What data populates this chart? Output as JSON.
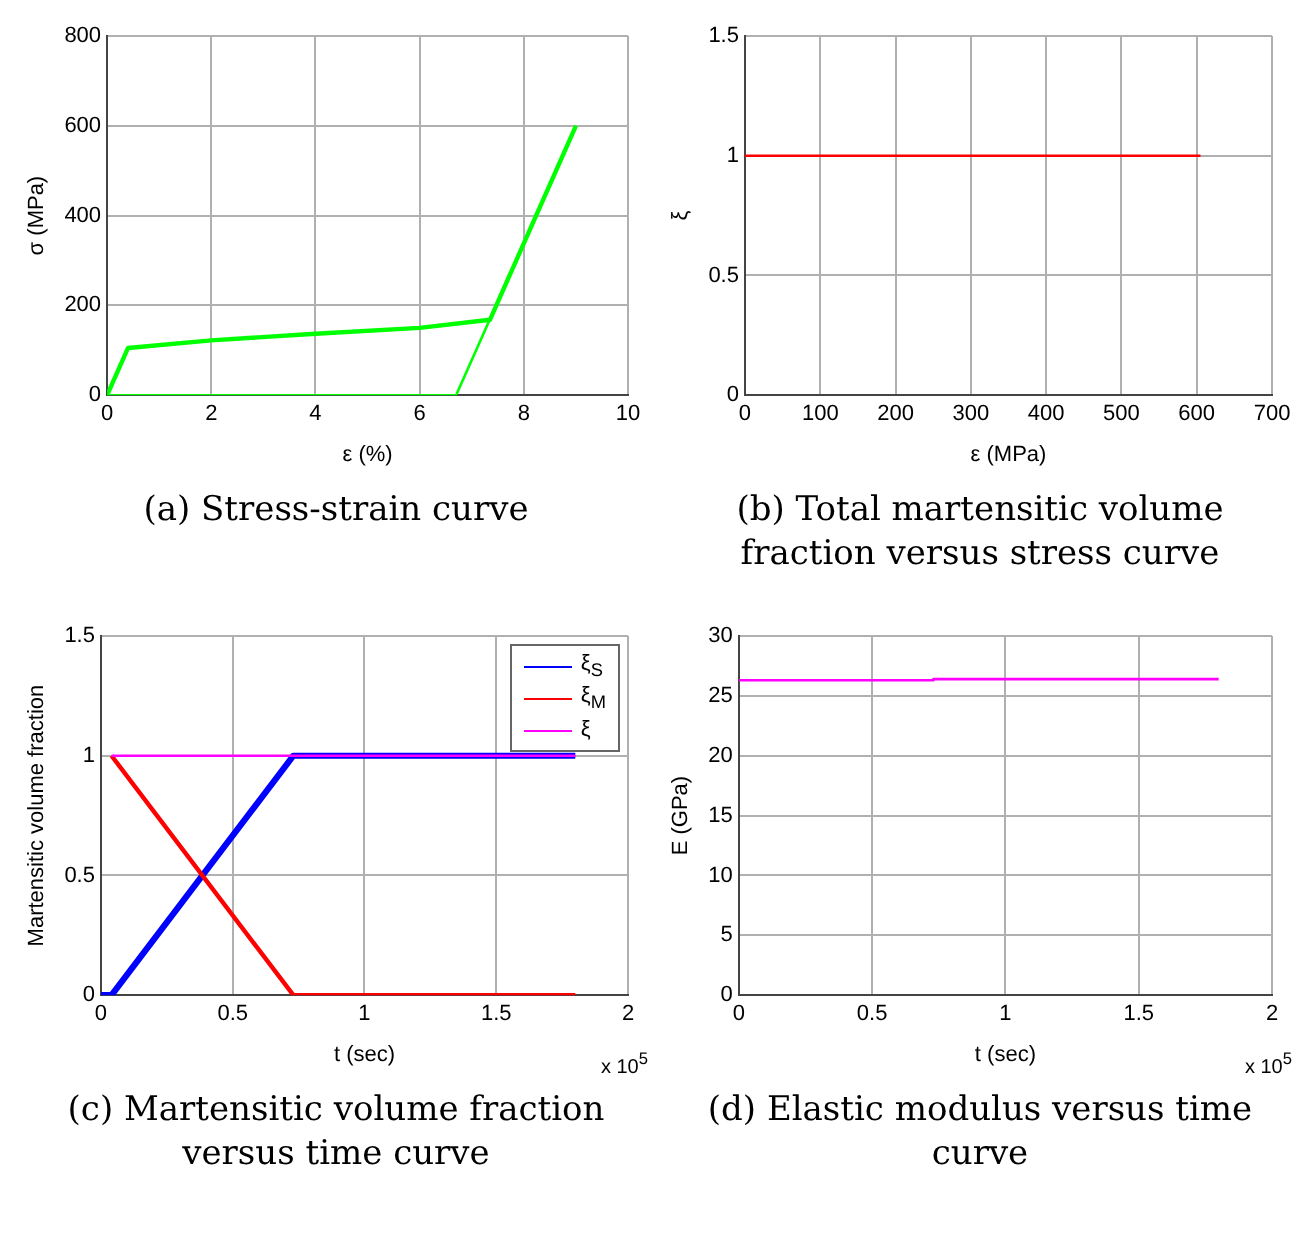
{
  "chart_data": [
    {
      "type": "line",
      "title": "(a)  Stress-strain curve",
      "xlabel": "ε (%)",
      "ylabel": "σ (MPa)",
      "xlim": [
        0,
        10
      ],
      "xticks": [
        0,
        2,
        4,
        6,
        8,
        10
      ],
      "ylim": [
        0,
        800
      ],
      "yticks": [
        0,
        200,
        400,
        600,
        800
      ],
      "grid": true,
      "series": [
        {
          "color": "#00ff00",
          "x": [
            0,
            0.4,
            2,
            4,
            6,
            7.35,
            9
          ],
          "values": [
            0,
            105,
            122,
            137,
            150,
            168,
            600
          ]
        },
        {
          "color": "#00ff00",
          "x": [
            0,
            6.7,
            9
          ],
          "values": [
            0,
            0,
            600
          ]
        }
      ]
    },
    {
      "type": "line",
      "title": "(b)  Total martensitic volume fraction versus stress curve",
      "xlabel": "ε (MPa)",
      "ylabel": "ξ",
      "xlim": [
        0,
        700
      ],
      "xticks": [
        0,
        100,
        200,
        300,
        400,
        500,
        600,
        700
      ],
      "ylim": [
        0,
        1.5
      ],
      "yticks": [
        0,
        0.5,
        1,
        1.5
      ],
      "grid": true,
      "series": [
        {
          "color": "#ff0000",
          "x": [
            0,
            605
          ],
          "values": [
            1,
            1
          ]
        }
      ]
    },
    {
      "type": "line",
      "title": "(c)  Martensitic volume fraction versus time curve",
      "xlabel": "t (sec)",
      "ylabel": "Martensitic volume fraction",
      "xlim": [
        0,
        2
      ],
      "xticks": [
        0,
        0.5,
        1,
        1.5,
        2
      ],
      "ylim": [
        0,
        1.5
      ],
      "yticks": [
        0,
        0.5,
        1,
        1.5
      ],
      "grid": true,
      "legend": "top right",
      "annotations": [
        "x 10$^{5}$"
      ],
      "series": [
        {
          "name": "ξ$_{S}$",
          "color": "#0000ff",
          "x": [
            0,
            0.04,
            0.73,
            1.8
          ],
          "values": [
            0,
            0,
            1,
            1
          ]
        },
        {
          "name": "ξ$_{M}$",
          "color": "#ff0000",
          "x": [
            0.04,
            0.73,
            1.8
          ],
          "values": [
            1,
            0,
            0
          ]
        },
        {
          "name": "ξ",
          "color": "#ff00ff",
          "x": [
            0.04,
            1.8
          ],
          "values": [
            1,
            1
          ]
        }
      ]
    },
    {
      "type": "line",
      "title": "(d)  Elastic modulus versus time curve",
      "xlabel": "t (sec)",
      "ylabel": "E (GPa)",
      "xlim": [
        0,
        2
      ],
      "xticks": [
        0,
        0.5,
        1,
        1.5,
        2
      ],
      "ylim": [
        0,
        30
      ],
      "yticks": [
        0,
        5,
        10,
        15,
        20,
        25,
        30
      ],
      "grid": true,
      "annotations": [
        "x 10$^{5}$"
      ],
      "series": [
        {
          "color": "#ff00ff",
          "x": [
            0,
            0.73,
            0.73,
            1.8
          ],
          "values": [
            26.3,
            26.3,
            26.4,
            26.4
          ]
        }
      ]
    }
  ]
}
